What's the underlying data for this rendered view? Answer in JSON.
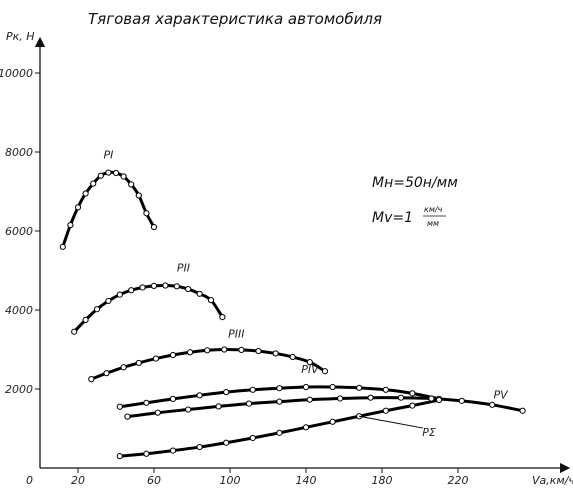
{
  "chart_data": {
    "type": "line",
    "title": "Тяговая характеристика автомобиля",
    "ylabel": "Pк, Н",
    "xlabel": "Vа,км/ч",
    "origin_label": "0",
    "xlim": [
      0,
      260
    ],
    "ylim": [
      0,
      10000
    ],
    "x_ticks": [
      20,
      60,
      100,
      140,
      180,
      220
    ],
    "y_ticks": [
      2000,
      4000,
      6000,
      8000,
      10000
    ],
    "grid": false,
    "scale_notes": {
      "force_scale": "Mн=50н/мм",
      "speed_scale_prefix": "Mv=1",
      "speed_scale_num": "км/ч",
      "speed_scale_den": "мм"
    },
    "series": [
      {
        "name": "PI",
        "x": [
          12,
          16,
          20,
          24,
          28,
          32,
          36,
          40,
          44,
          48,
          52,
          56,
          60
        ],
        "y": [
          5600,
          6150,
          6600,
          6950,
          7200,
          7400,
          7480,
          7470,
          7380,
          7180,
          6900,
          6450,
          6100
        ]
      },
      {
        "name": "PII",
        "x": [
          18,
          24,
          30,
          36,
          42,
          48,
          54,
          60,
          66,
          72,
          78,
          84,
          90,
          96
        ],
        "y": [
          3450,
          3750,
          4020,
          4230,
          4390,
          4500,
          4570,
          4610,
          4620,
          4600,
          4530,
          4410,
          4250,
          3820
        ]
      },
      {
        "name": "PIII",
        "x": [
          27,
          35,
          44,
          52,
          61,
          70,
          79,
          88,
          97,
          106,
          115,
          124,
          133,
          142,
          150
        ],
        "y": [
          2250,
          2400,
          2550,
          2660,
          2770,
          2860,
          2930,
          2980,
          3000,
          2990,
          2960,
          2900,
          2810,
          2680,
          2450
        ]
      },
      {
        "name": "PIV",
        "x": [
          42,
          56,
          70,
          84,
          98,
          112,
          126,
          140,
          154,
          168,
          182,
          196,
          210
        ],
        "y": [
          1550,
          1650,
          1750,
          1840,
          1920,
          1980,
          2020,
          2050,
          2050,
          2030,
          1980,
          1890,
          1750
        ]
      },
      {
        "name": "PV",
        "x": [
          46,
          62,
          78,
          94,
          110,
          126,
          142,
          158,
          174,
          190,
          206,
          222,
          238,
          254
        ],
        "y": [
          1300,
          1400,
          1480,
          1560,
          1630,
          1680,
          1730,
          1760,
          1780,
          1780,
          1760,
          1700,
          1600,
          1450
        ]
      },
      {
        "name": "PΣ",
        "x": [
          42,
          56,
          70,
          84,
          98,
          112,
          126,
          140,
          154,
          168,
          182,
          196,
          210
        ],
        "y": [
          300,
          360,
          440,
          530,
          640,
          760,
          890,
          1030,
          1170,
          1310,
          1450,
          1580,
          1720
        ]
      }
    ]
  }
}
